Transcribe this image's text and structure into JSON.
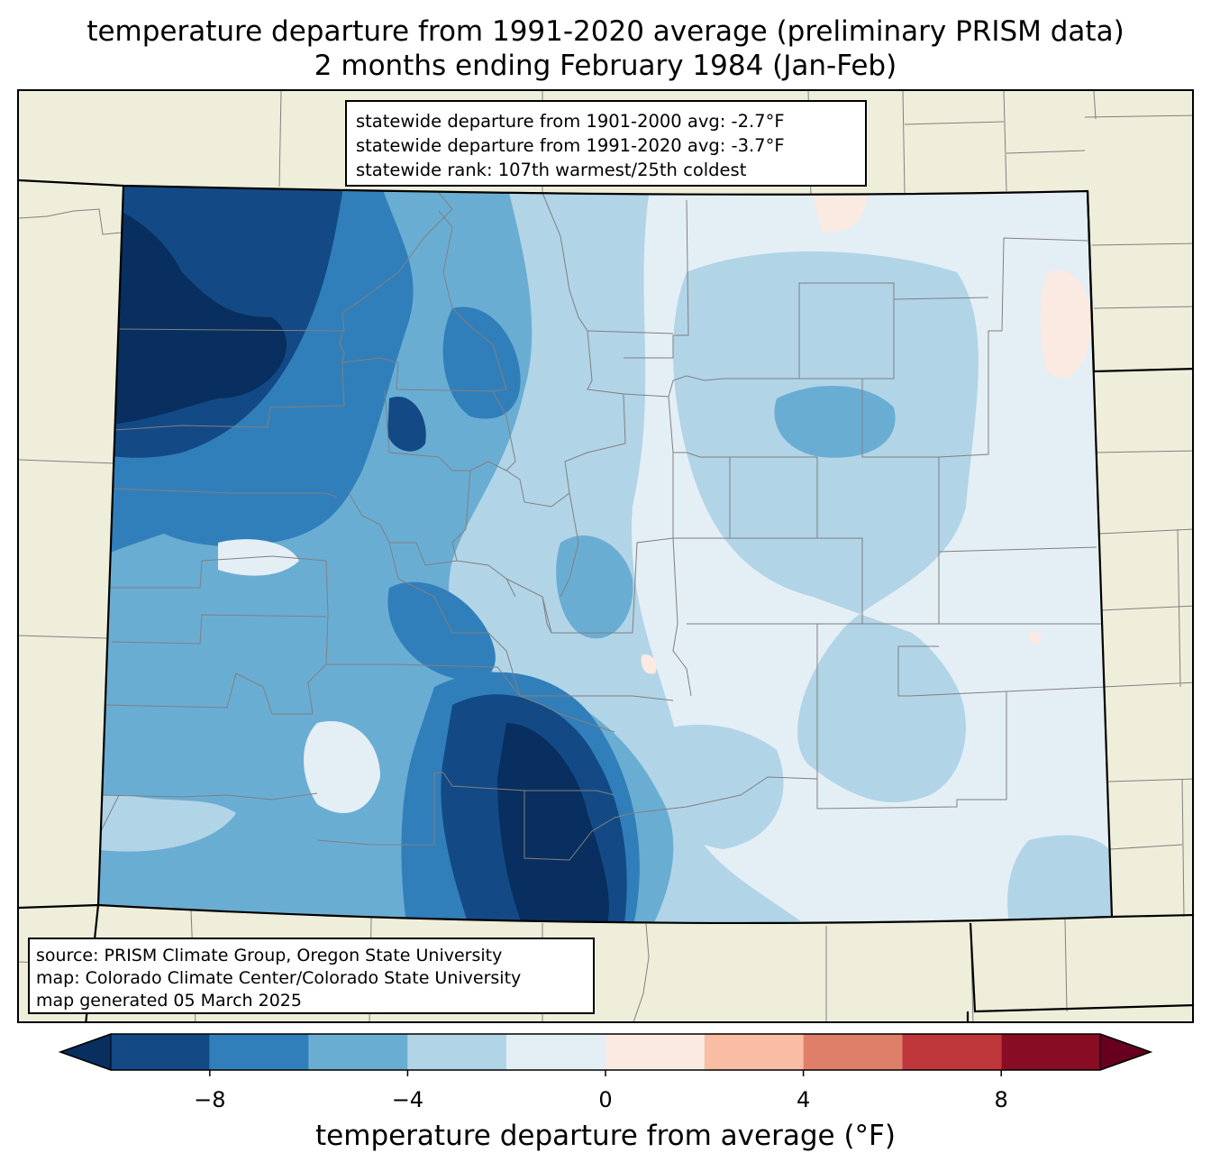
{
  "title": {
    "line1": "temperature departure from 1991-2020 average (preliminary PRISM data)",
    "line2": "2 months ending February 1984 (Jan-Feb)"
  },
  "stats": {
    "line1": "statewide departure from 1901-2000 avg: -2.7°F",
    "line2": "statewide departure from 1991-2020 avg: -3.7°F",
    "line3": "statewide rank: 107th warmest/25th coldest"
  },
  "source": {
    "line1": "source: PRISM Climate Group, Oregon State University",
    "line2": "map: Colorado Climate Center/Colorado State University",
    "line3": "map generated 05 March 2025"
  },
  "colorbar": {
    "label": "temperature departure from average (°F)",
    "ticks": [
      "−8",
      "−4",
      "0",
      "4",
      "8"
    ],
    "bins": [
      {
        "min": -10,
        "max": -8,
        "color": "#134a86"
      },
      {
        "min": -8,
        "max": -6,
        "color": "#317fba"
      },
      {
        "min": -6,
        "max": -4,
        "color": "#6aadd3"
      },
      {
        "min": -4,
        "max": -2,
        "color": "#b1d4e7"
      },
      {
        "min": -2,
        "max": 0,
        "color": "#e4eef5"
      },
      {
        "min": 0,
        "max": 2,
        "color": "#faeae1"
      },
      {
        "min": 2,
        "max": 4,
        "color": "#f8bda2"
      },
      {
        "min": 4,
        "max": 6,
        "color": "#e07f69"
      },
      {
        "min": 6,
        "max": 8,
        "color": "#bf363b"
      },
      {
        "min": 8,
        "max": 10,
        "color": "#890c25"
      }
    ],
    "under_color": "#082f5f",
    "over_color": "#67001f"
  },
  "colors": {
    "land": "#efeedb",
    "county_lines": "#808080",
    "state_lines": "#000000"
  }
}
